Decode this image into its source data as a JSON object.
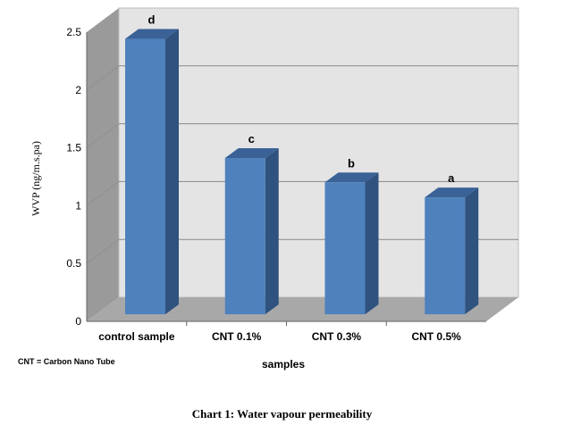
{
  "chart_data": {
    "type": "bar",
    "title": "Chart 1: Water vapour permeability",
    "xlabel": "samples",
    "ylabel": "WVP (ng/m.s.pa)",
    "categories": [
      "control sample",
      "CNT 0.1%",
      "CNT 0.3%",
      "CNT 0.5%"
    ],
    "values": [
      2.38,
      1.35,
      1.14,
      1.01
    ],
    "data_labels": [
      "d",
      "c",
      "b",
      "a"
    ],
    "ylim": [
      0,
      2.5
    ],
    "yticks": [
      "0",
      "0.5",
      "1",
      "1.5",
      "2",
      "2.5"
    ],
    "grid": true,
    "style": "3d-column",
    "note": "CNT = Carbon Nano Tube",
    "colors": {
      "bar_front": "#4f81bd",
      "bar_side": "#2f527e",
      "bar_top": "#3a6296",
      "wall": "#e4e4e4",
      "side_wall": "#9a9a9a",
      "floor": "#a8a8a8"
    }
  }
}
